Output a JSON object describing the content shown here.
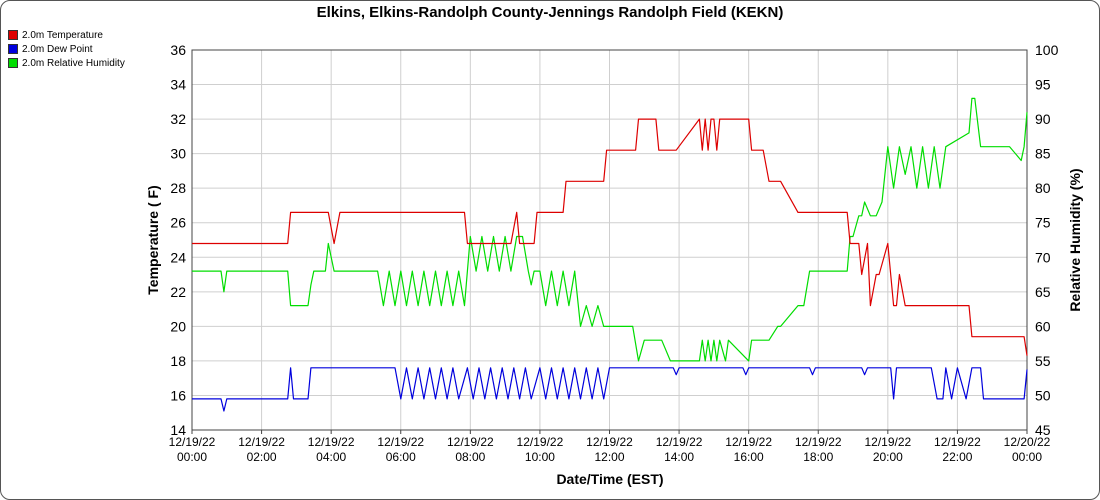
{
  "chart_data": {
    "type": "line",
    "title": "Elkins, Elkins-Randolph County-Jennings Randolph Field (KEKN)",
    "xlabel": "Date/Time (EST)",
    "ylabel": "Temperature ( F)",
    "y2label": "Relative Humidity (%)",
    "ylim": [
      14,
      36
    ],
    "y2lim": [
      45,
      100
    ],
    "xlim": [
      "12/19/22 00:00",
      "12/20/22 00:00"
    ],
    "yticks": [
      "14",
      "16",
      "18",
      "20",
      "22",
      "24",
      "26",
      "28",
      "30",
      "32",
      "34",
      "36"
    ],
    "y2ticks": [
      "45",
      "50",
      "55",
      "60",
      "65",
      "70",
      "75",
      "80",
      "85",
      "90",
      "95",
      "100"
    ],
    "xticks": [
      {
        "date": "12/19/22",
        "time": "00:00"
      },
      {
        "date": "12/19/22",
        "time": "02:00"
      },
      {
        "date": "12/19/22",
        "time": "04:00"
      },
      {
        "date": "12/19/22",
        "time": "06:00"
      },
      {
        "date": "12/19/22",
        "time": "08:00"
      },
      {
        "date": "12/19/22",
        "time": "10:00"
      },
      {
        "date": "12/19/22",
        "time": "12:00"
      },
      {
        "date": "12/19/22",
        "time": "14:00"
      },
      {
        "date": "12/19/22",
        "time": "16:00"
      },
      {
        "date": "12/19/22",
        "time": "18:00"
      },
      {
        "date": "12/19/22",
        "time": "20:00"
      },
      {
        "date": "12/19/22",
        "time": "22:00"
      },
      {
        "date": "12/20/22",
        "time": "00:00"
      }
    ],
    "grid": true,
    "legend_position": "top-left",
    "series": [
      {
        "name": "2.0m Temperature",
        "color": "#dd0000",
        "axis": "left",
        "x": [
          "12/19/22 00:00",
          "12/19/22 00:55",
          "12/19/22 01:05",
          "12/19/22 01:55",
          "12/19/22 02:05",
          "12/19/22 02:45",
          "12/19/22 02:50",
          "12/19/22 02:55",
          "12/19/22 03:55",
          "12/19/22 04:05",
          "12/19/22 04:15",
          "12/19/22 05:55",
          "12/19/22 06:05",
          "12/19/22 06:55",
          "12/19/22 07:05",
          "12/19/22 07:50",
          "12/19/22 07:55",
          "12/19/22 08:05",
          "12/19/22 09:10",
          "12/19/22 09:20",
          "12/19/22 09:25",
          "12/19/22 09:30",
          "12/19/22 09:50",
          "12/19/22 09:55",
          "12/19/22 10:00",
          "12/19/22 10:40",
          "12/19/22 10:45",
          "12/19/22 10:50",
          "12/19/22 11:00",
          "12/19/22 11:50",
          "12/19/22 11:55",
          "12/19/22 12:00",
          "12/19/22 12:10",
          "12/19/22 12:45",
          "12/19/22 12:50",
          "12/19/22 13:20",
          "12/19/22 13:25",
          "12/19/22 13:55",
          "12/19/22 14:35",
          "12/19/22 14:40",
          "12/19/22 14:45",
          "12/19/22 14:50",
          "12/19/22 14:55",
          "12/19/22 15:00",
          "12/19/22 15:05",
          "12/19/22 15:10",
          "12/19/22 15:20",
          "12/19/22 15:25",
          "12/19/22 16:00",
          "12/19/22 16:05",
          "12/19/22 16:25",
          "12/19/22 16:35",
          "12/19/22 16:50",
          "12/19/22 16:55",
          "12/19/22 17:25",
          "12/19/22 17:30",
          "12/19/22 17:35",
          "12/19/22 17:45",
          "12/19/22 18:50",
          "12/19/22 18:55",
          "12/19/22 19:10",
          "12/19/22 19:15",
          "12/19/22 19:25",
          "12/19/22 19:30",
          "12/19/22 19:40",
          "12/19/22 19:45",
          "12/19/22 20:00",
          "12/19/22 20:10",
          "12/19/22 20:15",
          "12/19/22 20:20",
          "12/19/22 20:30",
          "12/19/22 20:35",
          "12/19/22 21:25",
          "12/19/22 21:30",
          "12/19/22 22:20",
          "12/19/22 22:25",
          "12/19/22 22:50",
          "12/19/22 22:55",
          "12/19/22 23:55",
          "12/20/22 00:00"
        ],
        "values": [
          24.8,
          24.8,
          24.8,
          24.8,
          24.8,
          24.8,
          26.6,
          26.6,
          26.6,
          24.8,
          26.6,
          26.6,
          26.6,
          26.6,
          26.6,
          26.6,
          24.8,
          24.8,
          24.8,
          26.6,
          24.8,
          24.8,
          24.8,
          26.6,
          26.6,
          26.6,
          28.4,
          28.4,
          28.4,
          28.4,
          30.2,
          30.2,
          30.2,
          30.2,
          32,
          32,
          30.2,
          30.2,
          32,
          30.2,
          32,
          30.2,
          32,
          32,
          30.2,
          32,
          32,
          32,
          32,
          30.2,
          30.2,
          28.4,
          28.4,
          28.4,
          26.6,
          26.6,
          26.6,
          26.6,
          26.6,
          24.8,
          24.8,
          23,
          24.8,
          21.2,
          23,
          23,
          24.8,
          21.2,
          21.2,
          23,
          21.2,
          21.2,
          21.2,
          21.2,
          21.2,
          19.4,
          19.4,
          19.4,
          19.4,
          18.3
        ]
      },
      {
        "name": "2.0m Dew Point",
        "color": "#0000dd",
        "axis": "left",
        "x": [
          "12/19/22 00:00",
          "12/19/22 00:50",
          "12/19/22 00:55",
          "12/19/22 01:00",
          "12/19/22 02:45",
          "12/19/22 02:50",
          "12/19/22 02:55",
          "12/19/22 03:20",
          "12/19/22 03:25",
          "12/19/22 03:30",
          "12/19/22 05:50",
          "12/19/22 06:00",
          "12/19/22 06:10",
          "12/19/22 06:20",
          "12/19/22 06:30",
          "12/19/22 06:40",
          "12/19/22 06:50",
          "12/19/22 07:00",
          "12/19/22 07:10",
          "12/19/22 07:20",
          "12/19/22 07:30",
          "12/19/22 07:40",
          "12/19/22 07:55",
          "12/19/22 08:05",
          "12/19/22 08:15",
          "12/19/22 08:25",
          "12/19/22 08:35",
          "12/19/22 08:45",
          "12/19/22 08:55",
          "12/19/22 09:05",
          "12/19/22 09:15",
          "12/19/22 09:25",
          "12/19/22 09:35",
          "12/19/22 09:45",
          "12/19/22 10:00",
          "12/19/22 10:10",
          "12/19/22 10:20",
          "12/19/22 10:30",
          "12/19/22 10:40",
          "12/19/22 10:50",
          "12/19/22 11:00",
          "12/19/22 11:10",
          "12/19/22 11:20",
          "12/19/22 11:30",
          "12/19/22 11:40",
          "12/19/22 11:50",
          "12/19/22 12:00",
          "12/19/22 13:50",
          "12/19/22 13:55",
          "12/19/22 14:00",
          "12/19/22 15:50",
          "12/19/22 15:55",
          "12/19/22 16:00",
          "12/19/22 17:45",
          "12/19/22 17:50",
          "12/19/22 17:55",
          "12/19/22 19:15",
          "12/19/22 19:20",
          "12/19/22 19:25",
          "12/19/22 20:05",
          "12/19/22 20:10",
          "12/19/22 20:15",
          "12/19/22 21:15",
          "12/19/22 21:25",
          "12/19/22 21:35",
          "12/19/22 21:40",
          "12/19/22 21:50",
          "12/19/22 22:00",
          "12/19/22 22:15",
          "12/19/22 22:25",
          "12/19/22 22:40",
          "12/19/22 22:45",
          "12/19/22 23:55",
          "12/20/22 00:00"
        ],
        "values": [
          15.8,
          15.8,
          15.1,
          15.8,
          15.8,
          17.6,
          15.8,
          15.8,
          17.6,
          17.6,
          17.6,
          15.8,
          17.6,
          15.8,
          17.6,
          15.8,
          17.6,
          15.8,
          17.6,
          15.8,
          17.6,
          15.8,
          17.6,
          15.8,
          17.6,
          15.8,
          17.6,
          15.8,
          17.6,
          15.8,
          17.6,
          15.8,
          17.6,
          15.8,
          17.6,
          15.8,
          17.6,
          15.8,
          17.6,
          15.8,
          17.6,
          15.8,
          17.6,
          15.8,
          17.6,
          15.8,
          17.6,
          17.6,
          17.2,
          17.6,
          17.6,
          17.2,
          17.6,
          17.6,
          17.2,
          17.6,
          17.6,
          17.2,
          17.6,
          17.6,
          15.8,
          17.6,
          17.6,
          15.8,
          15.8,
          17.6,
          15.8,
          17.6,
          15.8,
          17.6,
          17.6,
          15.8,
          15.8,
          17.5
        ]
      },
      {
        "name": "2.0m Relative Humidity",
        "color": "#00dd00",
        "axis": "right",
        "x": [
          "12/19/22 00:00",
          "12/19/22 00:50",
          "12/19/22 00:55",
          "12/19/22 01:00",
          "12/19/22 02:45",
          "12/19/22 02:50",
          "12/19/22 02:55",
          "12/19/22 03:20",
          "12/19/22 03:25",
          "12/19/22 03:30",
          "12/19/22 03:50",
          "12/19/22 03:55",
          "12/19/22 04:05",
          "12/19/22 05:20",
          "12/19/22 05:30",
          "12/19/22 05:40",
          "12/19/22 05:50",
          "12/19/22 06:00",
          "12/19/22 06:10",
          "12/19/22 06:20",
          "12/19/22 06:30",
          "12/19/22 06:40",
          "12/19/22 06:50",
          "12/19/22 07:00",
          "12/19/22 07:10",
          "12/19/22 07:20",
          "12/19/22 07:30",
          "12/19/22 07:40",
          "12/19/22 07:50",
          "12/19/22 08:00",
          "12/19/22 08:10",
          "12/19/22 08:20",
          "12/19/22 08:30",
          "12/19/22 08:40",
          "12/19/22 08:50",
          "12/19/22 09:00",
          "12/19/22 09:10",
          "12/19/22 09:20",
          "12/19/22 09:30",
          "12/19/22 09:40",
          "12/19/22 09:45",
          "12/19/22 09:50",
          "12/19/22 10:00",
          "12/19/22 10:10",
          "12/19/22 10:20",
          "12/19/22 10:30",
          "12/19/22 10:40",
          "12/19/22 10:50",
          "12/19/22 11:00",
          "12/19/22 11:10",
          "12/19/22 11:20",
          "12/19/22 11:30",
          "12/19/22 11:40",
          "12/19/22 11:50",
          "12/19/22 12:00",
          "12/19/22 12:10",
          "12/19/22 12:40",
          "12/19/22 12:50",
          "12/19/22 13:00",
          "12/19/22 13:30",
          "12/19/22 13:45",
          "12/19/22 14:00",
          "12/19/22 14:35",
          "12/19/22 14:40",
          "12/19/22 14:45",
          "12/19/22 14:50",
          "12/19/22 14:55",
          "12/19/22 15:00",
          "12/19/22 15:05",
          "12/19/22 15:10",
          "12/19/22 15:20",
          "12/19/22 15:25",
          "12/19/22 16:00",
          "12/19/22 16:05",
          "12/19/22 16:25",
          "12/19/22 16:35",
          "12/19/22 16:50",
          "12/19/22 16:55",
          "12/19/22 17:25",
          "12/19/22 17:35",
          "12/19/22 17:45",
          "12/19/22 18:50",
          "12/19/22 18:55",
          "12/19/22 19:00",
          "12/19/22 19:10",
          "12/19/22 19:15",
          "12/19/22 19:20",
          "12/19/22 19:30",
          "12/19/22 19:40",
          "12/19/22 19:50",
          "12/19/22 20:00",
          "12/19/22 20:10",
          "12/19/22 20:20",
          "12/19/22 20:30",
          "12/19/22 20:40",
          "12/19/22 20:50",
          "12/19/22 21:00",
          "12/19/22 21:10",
          "12/19/22 21:20",
          "12/19/22 21:30",
          "12/19/22 21:40",
          "12/19/22 22:20",
          "12/19/22 22:25",
          "12/19/22 22:30",
          "12/19/22 22:40",
          "12/19/22 23:20",
          "12/19/22 23:30",
          "12/19/22 23:50",
          "12/19/22 23:55",
          "12/20/22 00:00"
        ],
        "values": [
          68,
          68,
          65,
          68,
          68,
          63,
          63,
          63,
          66,
          68,
          68,
          72,
          68,
          68,
          63,
          68,
          63,
          68,
          63,
          68,
          63,
          68,
          63,
          68,
          63,
          68,
          63,
          68,
          63,
          73,
          68,
          73,
          68,
          73,
          68,
          73,
          68,
          73,
          73,
          68,
          66,
          68,
          68,
          63,
          68,
          63,
          68,
          63,
          68,
          60,
          63,
          60,
          63,
          60,
          60,
          60,
          60,
          55,
          58,
          58,
          55,
          55,
          55,
          58,
          55,
          58,
          55,
          58,
          55,
          58,
          55,
          58,
          55,
          58,
          58,
          58,
          60,
          60,
          63,
          63,
          68,
          68,
          73,
          73,
          76,
          76,
          78,
          76,
          76,
          78,
          86,
          80,
          86,
          82,
          86,
          80,
          86,
          80,
          86,
          80,
          86,
          88,
          93,
          93,
          86,
          86,
          86,
          84,
          86,
          91
        ]
      }
    ]
  }
}
